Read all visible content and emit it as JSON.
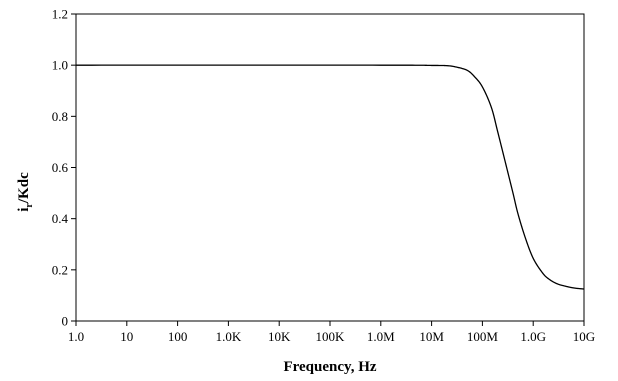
{
  "chart_data": {
    "type": "line",
    "title": "",
    "xlabel": "Frequency, Hz",
    "ylabel_main": "i",
    "ylabel_sub": "r",
    "ylabel_rest": "/Kdc",
    "x_scale": "log",
    "xlim": [
      1,
      10000000000
    ],
    "ylim": [
      0,
      1.2
    ],
    "x_ticks": [
      {
        "value": 1,
        "label": "1.0"
      },
      {
        "value": 10,
        "label": "10"
      },
      {
        "value": 100,
        "label": "100"
      },
      {
        "value": 1000,
        "label": "1.0K"
      },
      {
        "value": 10000,
        "label": "10K"
      },
      {
        "value": 100000,
        "label": "100K"
      },
      {
        "value": 1000000,
        "label": "1.0M"
      },
      {
        "value": 10000000,
        "label": "10M"
      },
      {
        "value": 100000000,
        "label": "100M"
      },
      {
        "value": 1000000000,
        "label": "1.0G"
      },
      {
        "value": 10000000000,
        "label": "10G"
      }
    ],
    "y_ticks": [
      {
        "value": 0,
        "label": "0"
      },
      {
        "value": 0.2,
        "label": "0.2"
      },
      {
        "value": 0.4,
        "label": "0.4"
      },
      {
        "value": 0.6,
        "label": "0.6"
      },
      {
        "value": 0.8,
        "label": "0.8"
      },
      {
        "value": 1.0,
        "label": "1.0"
      },
      {
        "value": 1.2,
        "label": "1.2"
      }
    ],
    "grid": false,
    "legend": "none",
    "series": [
      {
        "color": "#000000",
        "points": [
          [
            1,
            1.0
          ],
          [
            1000000,
            1.0
          ],
          [
            10000000,
            0.999
          ],
          [
            20000000,
            0.998
          ],
          [
            30000000,
            0.993
          ],
          [
            50000000,
            0.98
          ],
          [
            70000000,
            0.955
          ],
          [
            100000000,
            0.915
          ],
          [
            150000000,
            0.835
          ],
          [
            200000000,
            0.74
          ],
          [
            300000000,
            0.6
          ],
          [
            400000000,
            0.5
          ],
          [
            500000000,
            0.42
          ],
          [
            700000000,
            0.325
          ],
          [
            1000000000,
            0.245
          ],
          [
            1500000000,
            0.19
          ],
          [
            2000000000,
            0.165
          ],
          [
            3000000000,
            0.145
          ],
          [
            5000000000,
            0.133
          ],
          [
            7000000000,
            0.128
          ],
          [
            10000000000,
            0.125
          ]
        ]
      }
    ]
  }
}
